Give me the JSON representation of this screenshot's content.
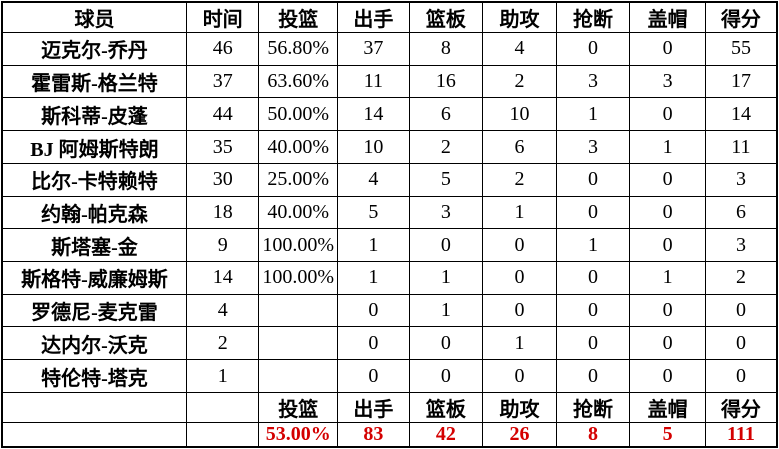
{
  "chart_data": {
    "type": "table",
    "columns": [
      "球员",
      "时间",
      "投篮",
      "出手",
      "篮板",
      "助攻",
      "抢断",
      "盖帽",
      "得分"
    ],
    "rows": [
      [
        "迈克尔-乔丹",
        "46",
        "56.80%",
        "37",
        "8",
        "4",
        "0",
        "0",
        "55"
      ],
      [
        "霍雷斯-格兰特",
        "37",
        "63.60%",
        "11",
        "16",
        "2",
        "3",
        "3",
        "17"
      ],
      [
        "斯科蒂-皮蓬",
        "44",
        "50.00%",
        "14",
        "6",
        "10",
        "1",
        "0",
        "14"
      ],
      [
        "BJ 阿姆斯特朗",
        "35",
        "40.00%",
        "10",
        "2",
        "6",
        "3",
        "1",
        "11"
      ],
      [
        "比尔-卡特赖特",
        "30",
        "25.00%",
        "4",
        "5",
        "2",
        "0",
        "0",
        "3"
      ],
      [
        "约翰-帕克森",
        "18",
        "40.00%",
        "5",
        "3",
        "1",
        "0",
        "0",
        "6"
      ],
      [
        "斯塔塞-金",
        "9",
        "100.00%",
        "1",
        "0",
        "0",
        "1",
        "0",
        "3"
      ],
      [
        "斯格特-威廉姆斯",
        "14",
        "100.00%",
        "1",
        "1",
        "0",
        "0",
        "1",
        "2"
      ],
      [
        "罗德尼-麦克雷",
        "4",
        "",
        "0",
        "1",
        "0",
        "0",
        "0",
        "0"
      ],
      [
        "达内尔-沃克",
        "2",
        "",
        "0",
        "0",
        "1",
        "0",
        "0",
        "0"
      ],
      [
        "特伦特-塔克",
        "1",
        "",
        "0",
        "0",
        "0",
        "0",
        "0",
        "0"
      ]
    ],
    "footer_labels": [
      "投篮",
      "出手",
      "篮板",
      "助攻",
      "抢断",
      "盖帽",
      "得分"
    ],
    "totals": [
      "53.00%",
      "83",
      "42",
      "26",
      "8",
      "5",
      "111"
    ]
  },
  "colors": {
    "total_text": "#d40000",
    "border": "#000000",
    "text": "#000000",
    "background": "#ffffff"
  }
}
